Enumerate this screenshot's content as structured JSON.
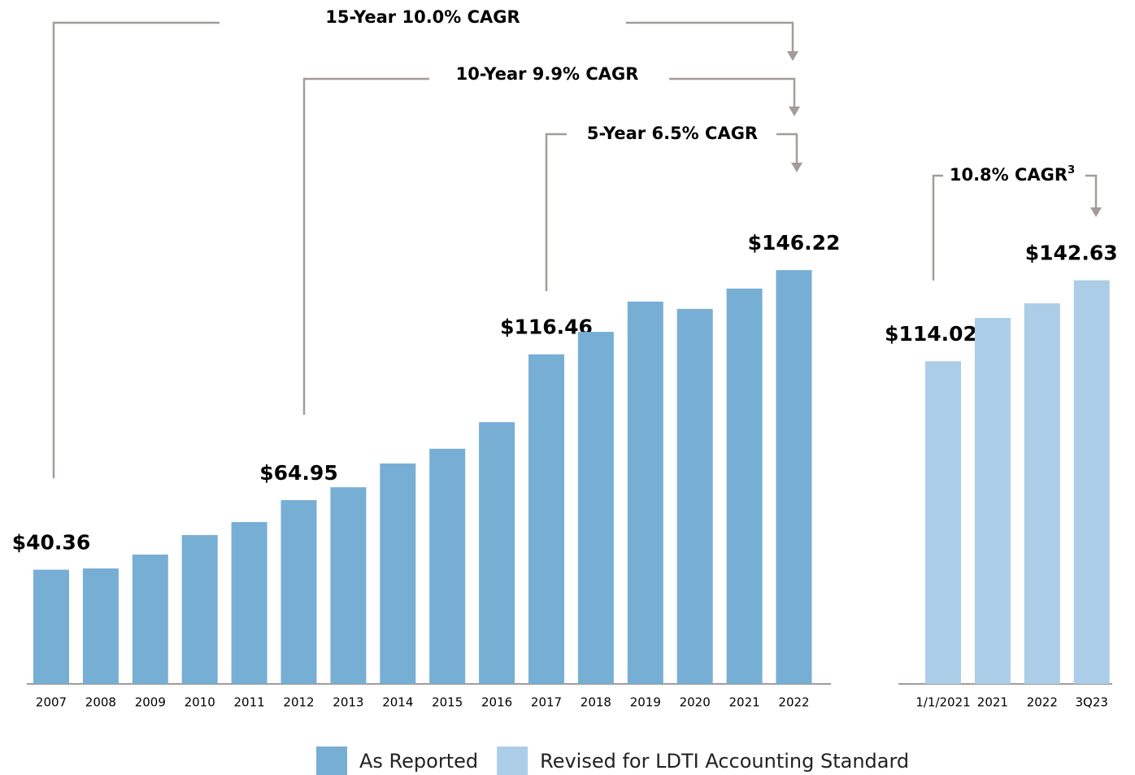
{
  "chart_data": {
    "type": "bar",
    "groups": [
      {
        "name": "As Reported",
        "color": "#77aed4",
        "categories": [
          "2007",
          "2008",
          "2009",
          "2010",
          "2011",
          "2012",
          "2013",
          "2014",
          "2015",
          "2016",
          "2017",
          "2018",
          "2019",
          "2020",
          "2021",
          "2022"
        ],
        "values": [
          40.36,
          40.8,
          45.7,
          52.6,
          57.2,
          64.95,
          69.5,
          77.9,
          83.1,
          92.5,
          116.46,
          124.4,
          135.1,
          132.5,
          139.7,
          146.22
        ],
        "value_labels": [
          "$40.36",
          null,
          null,
          null,
          null,
          "$64.95",
          null,
          null,
          null,
          null,
          "$116.46",
          null,
          null,
          null,
          null,
          "$146.22"
        ]
      },
      {
        "name": "Revised for LDTI Accounting Standard",
        "color": "#abcde8",
        "categories": [
          "1/1/2021",
          "2021",
          "2022",
          "3Q23"
        ],
        "values": [
          114.02,
          129.3,
          134.5,
          142.63
        ],
        "value_labels": [
          "$114.02",
          null,
          null,
          "$142.63"
        ]
      }
    ],
    "annotations": [
      {
        "text": "15-Year 10.0% CAGR"
      },
      {
        "text": "10-Year 9.9% CAGR"
      },
      {
        "text": "5-Year 6.5% CAGR"
      },
      {
        "text": "10.8% CAGR",
        "superscript": "3"
      }
    ]
  }
}
